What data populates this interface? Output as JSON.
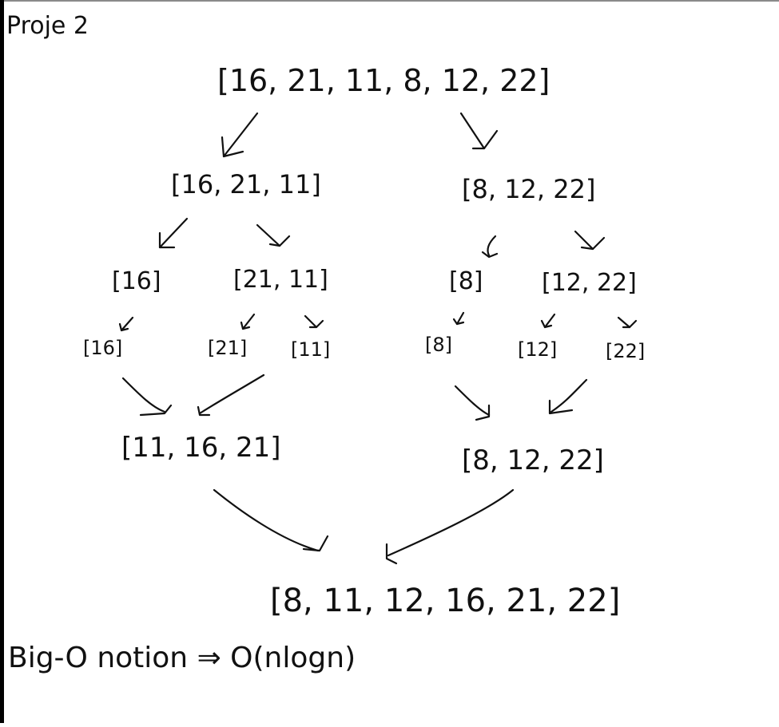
{
  "title": "Proje 2",
  "levels": {
    "root": "[16, 21, 11, 8, 12, 22]",
    "split_left": "[16, 21, 11]",
    "split_right": "[8, 12, 22]",
    "left_a": "[16]",
    "left_b": "[21, 11]",
    "right_a": "[8]",
    "right_b": "[12, 22]",
    "leaf_1": "[16]",
    "leaf_2": "[21]",
    "leaf_3": "[11]",
    "leaf_4": "[8]",
    "leaf_5": "[12]",
    "leaf_6": "[22]",
    "merge_left": "[11, 16, 21]",
    "merge_right": "[8, 12, 22]",
    "final": "[8, 11, 12, 16, 21, 22]"
  },
  "note": "Big-O notion ⇒ O(nlogn)",
  "ink_color": "#111111"
}
